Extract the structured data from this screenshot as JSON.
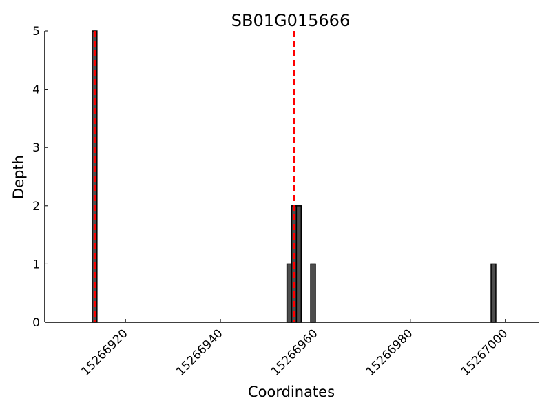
{
  "chart_data": {
    "type": "bar",
    "title": "SB01G015666",
    "xlabel": "Coordinates",
    "ylabel": "Depth",
    "xlim": [
      15266903,
      15267007
    ],
    "ylim": [
      0,
      5
    ],
    "x_ticks": [
      15266920,
      15266940,
      15266960,
      15266980,
      15267000
    ],
    "y_ticks": [
      0,
      1,
      2,
      3,
      4,
      5
    ],
    "bar_width": 1,
    "bars": [
      {
        "x": 15266913,
        "depth": 5
      },
      {
        "x": 15266954,
        "depth": 1
      },
      {
        "x": 15266955,
        "depth": 2
      },
      {
        "x": 15266956,
        "depth": 2
      },
      {
        "x": 15266959,
        "depth": 1
      },
      {
        "x": 15266997,
        "depth": 1
      }
    ],
    "markers": [
      15266913.5,
      15266955.5
    ],
    "bar_color": "#4d4d4d",
    "marker_color": "#ff0000",
    "grid": false
  }
}
